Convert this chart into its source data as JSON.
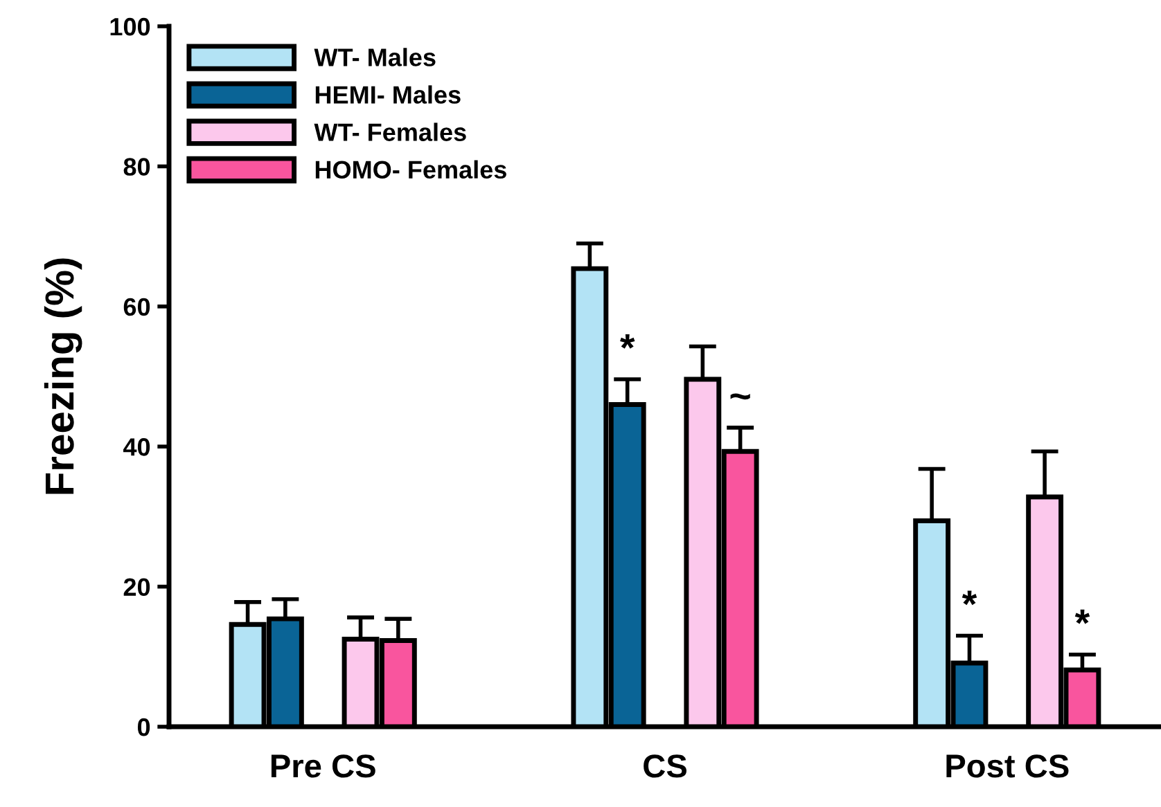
{
  "chart_data": {
    "type": "bar",
    "ylabel": "Freezing (%)",
    "categories": [
      "Pre CS",
      "CS",
      "Post CS"
    ],
    "series": [
      {
        "name": "WT- Males",
        "color": "#b3e3f5",
        "values": [
          14.6,
          65.4,
          29.4
        ],
        "errors": [
          [
            14.6,
            17.8
          ],
          [
            65.4,
            69.0
          ],
          [
            29.4,
            36.8
          ]
        ]
      },
      {
        "name": "HEMI- Males",
        "color": "#0a6496",
        "values": [
          15.4,
          46.0,
          9.1
        ],
        "errors": [
          [
            15.4,
            18.2
          ],
          [
            46.0,
            49.6
          ],
          [
            9.1,
            13.0
          ]
        ],
        "value_labels": [
          null,
          "*",
          "*"
        ]
      },
      {
        "name": "WT- Females",
        "color": "#fcc8ec",
        "values": [
          12.5,
          49.6,
          32.8
        ],
        "errors": [
          [
            12.5,
            15.6
          ],
          [
            49.6,
            54.3
          ],
          [
            32.8,
            39.3
          ]
        ]
      },
      {
        "name": "HOMO- Females",
        "color": "#f9559e",
        "values": [
          12.3,
          39.3,
          8.1
        ],
        "errors": [
          [
            12.3,
            15.4
          ],
          [
            39.3,
            42.7
          ],
          [
            8.1,
            10.3
          ]
        ],
        "value_labels": [
          null,
          "~",
          "*"
        ]
      }
    ],
    "ylim": [
      0,
      100
    ],
    "yticks": [
      0,
      20,
      40,
      60,
      80,
      100
    ],
    "grid": false,
    "legend": "top left"
  }
}
